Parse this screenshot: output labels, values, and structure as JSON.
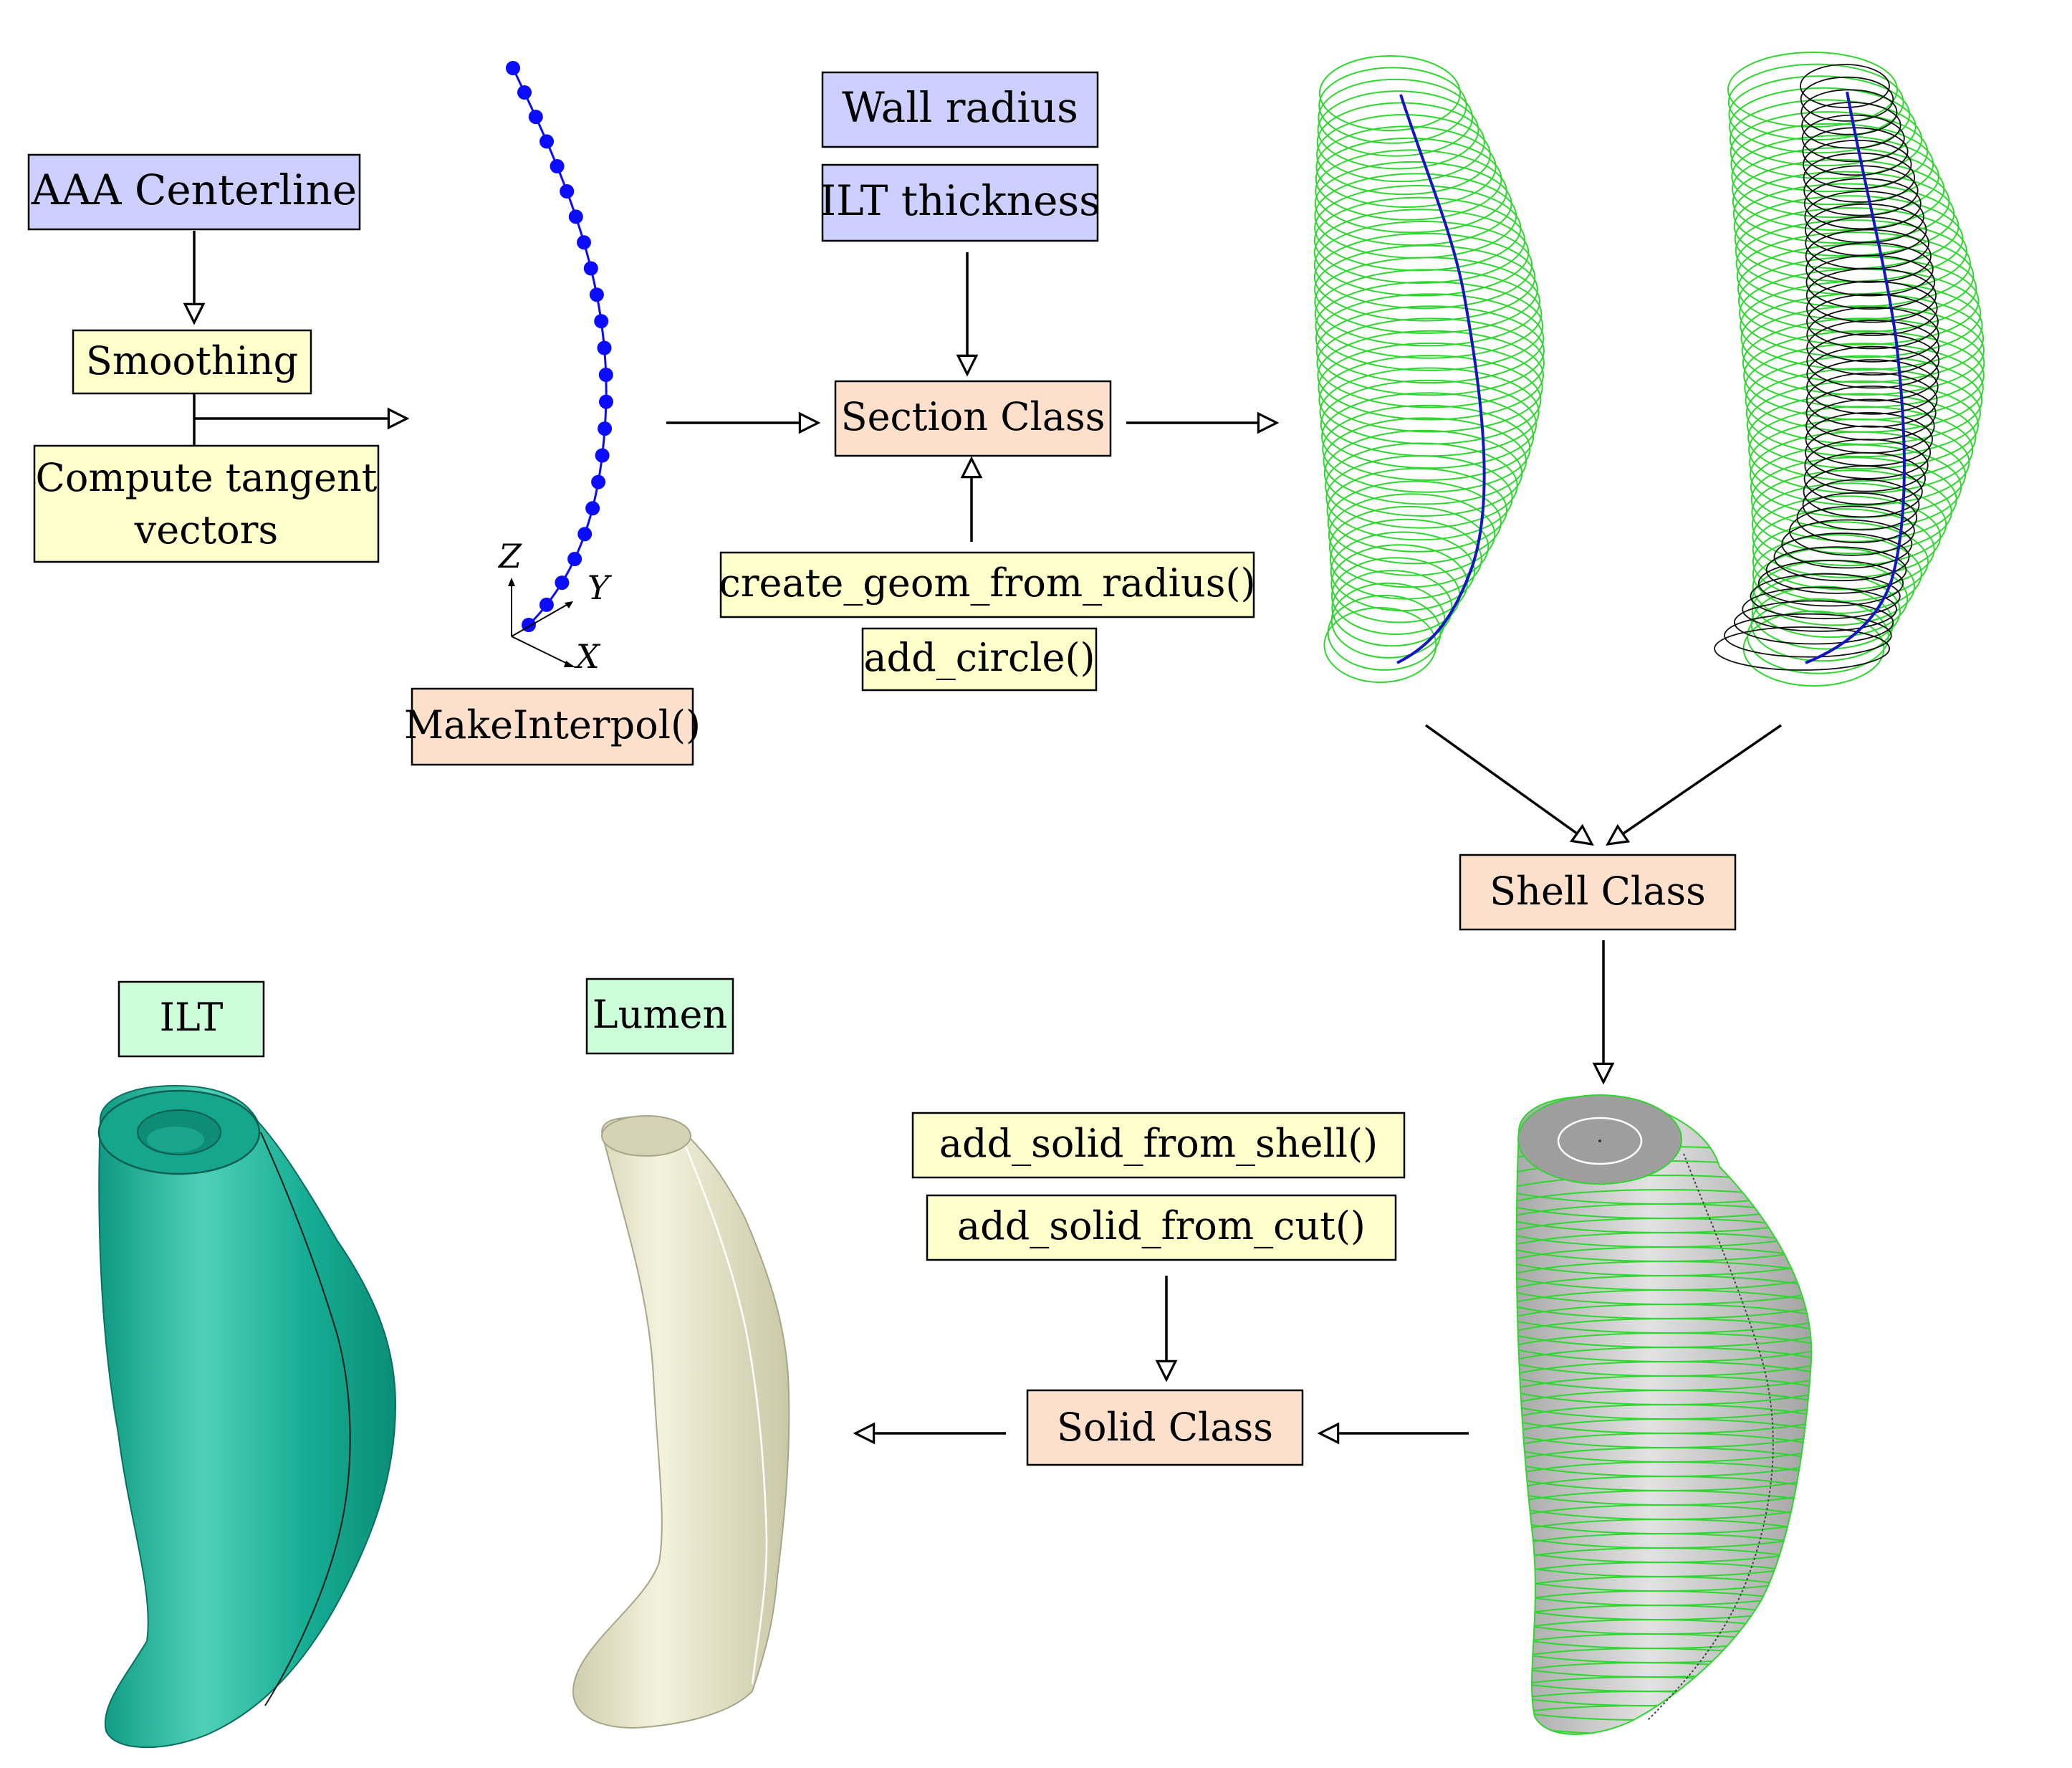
{
  "boxes": {
    "aaa_centerline": "AAA Centerline",
    "smoothing": "Smoothing",
    "compute_tangent_line1": "Compute tangent",
    "compute_tangent_line2": "vectors",
    "make_interpol": "MakeInterpol()",
    "wall_radius": "Wall radius",
    "ilt_thickness": "ILT thickness",
    "section_class": "Section Class",
    "create_geom": "create_geom_from_radius()",
    "add_circle": "add_circle()",
    "shell_class": "Shell Class",
    "add_solid_shell": "add_solid_from_shell()",
    "add_solid_cut": "add_solid_from_cut()",
    "solid_class": "Solid Class",
    "ilt": "ILT",
    "lumen": "Lumen"
  },
  "axes": {
    "x": "X",
    "y": "Y",
    "z": "Z"
  },
  "colors": {
    "blue_box": "#cccfff",
    "yellow_box": "#ffffcc",
    "orange_box": "#fde0cc",
    "green_box": "#ccffd9",
    "centerline_blue": "#0b0bff",
    "ring_green": "#2fd62f",
    "ilt_teal": "#18a991",
    "lumen_beige": "#e3e2c6",
    "solid_gray": "#c4c4c4"
  }
}
